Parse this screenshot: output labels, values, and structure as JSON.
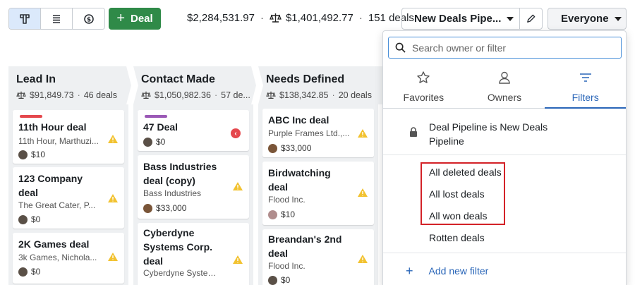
{
  "toolbar": {
    "view_icons": [
      "pipeline-board-icon",
      "list-view-icon",
      "forecast-icon"
    ],
    "add_deal_label": "Deal",
    "total_value": "$2,284,531.97",
    "weighted_value": "$1,401,492.77",
    "deal_count": "151 deals",
    "pipeline_name": "New Deals Pipe...",
    "owner_filter": "Everyone"
  },
  "columns": [
    {
      "name": "Lead In",
      "value": "$91,849.73",
      "count": "46 deals",
      "cards": [
        {
          "title": "11th Hour deal",
          "subtitle": "11th Hour, Marthuzi...",
          "value": "$10",
          "label_color": "#e5484d",
          "flag": "warning"
        },
        {
          "title": "123 Company deal",
          "subtitle": "The Great Cater, P...",
          "value": "$0",
          "flag": "warning"
        },
        {
          "title": "2K Games deal",
          "subtitle": "3k Games, Nichola...",
          "value": "$0",
          "flag": "warning"
        }
      ]
    },
    {
      "name": "Contact Made",
      "value": "$1,050,982.36",
      "count": "57 de...",
      "cards": [
        {
          "title": "47 Deal",
          "subtitle": "",
          "value": "$0",
          "label_color": "#9b59b6",
          "flag": "overdue"
        },
        {
          "title": "Bass Industries deal (copy)",
          "subtitle": "Bass Industries",
          "value": "$33,000",
          "flag": "warning"
        },
        {
          "title": "Cyberdyne Systems Corp. deal",
          "subtitle": "Cyberdyne System...",
          "value": "",
          "flag": "warning"
        }
      ]
    },
    {
      "name": "Needs Defined",
      "value": "$138,342.85",
      "count": "20 deals",
      "cards": [
        {
          "title": "ABC Inc deal",
          "subtitle": "Purple Frames Ltd.,...",
          "value": "$33,000",
          "flag": "warning"
        },
        {
          "title": "Birdwatching deal",
          "subtitle": "Flood Inc.",
          "value": "$10",
          "flag": "warning"
        },
        {
          "title": "Breandan's 2nd deal",
          "subtitle": "Flood Inc.",
          "value": "$0",
          "flag": "warning"
        }
      ]
    }
  ],
  "filter_panel": {
    "search_placeholder": "Search owner or filter",
    "tabs": [
      {
        "label": "Favorites",
        "icon": "star-icon"
      },
      {
        "label": "Owners",
        "icon": "person-icon"
      },
      {
        "label": "Filters",
        "icon": "filter-icon",
        "active": true
      }
    ],
    "locked_filter": "Deal Pipeline is New Deals Pipeline",
    "filters": [
      "All deleted deals",
      "All lost deals",
      "All won deals",
      "Rotten deals"
    ],
    "add_filter_label": "Add new filter"
  },
  "colors": {
    "primary_green": "#2f8a48",
    "accent_blue": "#2a66b8",
    "highlight_red": "#d32228",
    "warning_yellow": "#f2c230"
  }
}
